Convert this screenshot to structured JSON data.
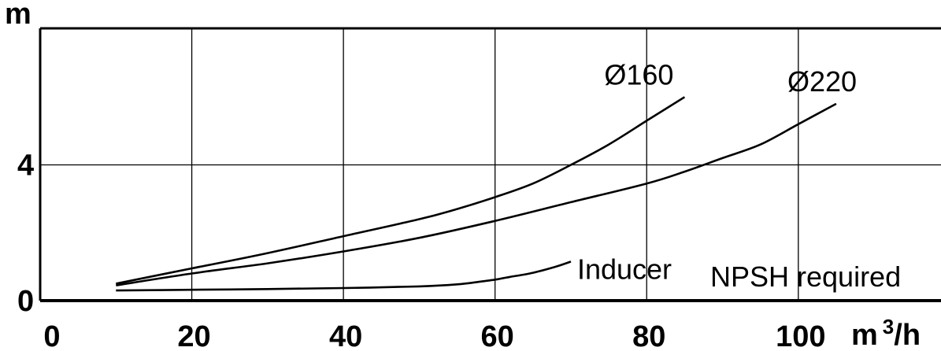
{
  "chart_data": {
    "type": "line",
    "title": "",
    "subtitle": "",
    "ylabel": "m",
    "xlabel": "m 3/h",
    "xlabel_parts": {
      "base": "m",
      "exp": "3",
      "tail": "/h"
    },
    "xlim": [
      0,
      120
    ],
    "ylim": [
      0,
      8
    ],
    "x_ticks": [
      0,
      20,
      40,
      60,
      80,
      100
    ],
    "y_ticks": [
      0,
      4
    ],
    "grid": true,
    "annotation": "NPSH required",
    "series": [
      {
        "name": "Ø160",
        "x": [
          10,
          20,
          30,
          40,
          50,
          55,
          60,
          65,
          70,
          75,
          80,
          85
        ],
        "y": [
          0.5,
          0.95,
          1.4,
          1.9,
          2.4,
          2.7,
          3.05,
          3.45,
          4.0,
          4.6,
          5.3,
          6.0
        ]
      },
      {
        "name": "Ø220",
        "x": [
          10,
          20,
          30,
          40,
          50,
          60,
          70,
          80,
          85,
          90,
          95,
          100,
          105
        ],
        "y": [
          0.45,
          0.8,
          1.1,
          1.45,
          1.85,
          2.35,
          2.9,
          3.45,
          3.8,
          4.2,
          4.6,
          5.2,
          5.8
        ]
      },
      {
        "name": "Inducer",
        "x": [
          10,
          20,
          30,
          40,
          50,
          55,
          58,
          60,
          62,
          65,
          68,
          70
        ],
        "y": [
          0.3,
          0.32,
          0.34,
          0.37,
          0.42,
          0.48,
          0.56,
          0.62,
          0.7,
          0.82,
          1.0,
          1.15
        ]
      }
    ]
  }
}
